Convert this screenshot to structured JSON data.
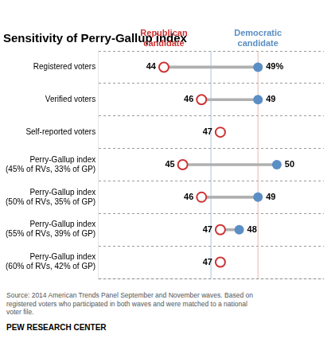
{
  "chart_data": {
    "type": "dumbbell",
    "title": "Sensitivity of Perry-Gallup index",
    "categories": [
      "Registered voters",
      "Verified voters",
      "Self-reported voters",
      "Perry-Gallup index\n(45% of RVs, 33% of GP)",
      "Perry-Gallup index\n(50% of RVs, 35% of GP)",
      "Perry-Gallup index\n(55% of RVs, 39% of GP)",
      "Perry-Gallup index\n(60% of RVs, 42% of GP)"
    ],
    "series": [
      {
        "name": "Republican\ncandidate",
        "color": "#cc3333",
        "marker": "hollow",
        "values": [
          44,
          46,
          47,
          45,
          46,
          47,
          47
        ]
      },
      {
        "name": "Democratic\ncandidate",
        "color": "#5b8ec4",
        "marker": "circle",
        "values": [
          49,
          49,
          null,
          50,
          49,
          48,
          null
        ],
        "value_labels": [
          "49%",
          "49",
          null,
          "50",
          "49",
          "48",
          null
        ]
      }
    ],
    "reference_lines": [
      {
        "x": 46.5,
        "color": "#a8c4e0"
      },
      {
        "x": 49,
        "color": "#e8b8b0"
      }
    ],
    "xlim": [
      40.5,
      52.5
    ],
    "tick_labels": "y",
    "grid": true,
    "data_labels": true,
    "annotations": [
      "Source: 2014 American Trends Panel September and November waves. Based on\nregistered voters who participated in both waves and were matched to a national\nvoter file.",
      "PEW RESEARCH CENTER"
    ]
  }
}
